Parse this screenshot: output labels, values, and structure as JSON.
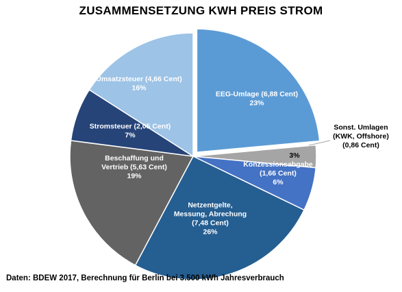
{
  "title": "ZUSAMMENSETZUNG KWH PREIS STROM",
  "source": "Daten: BDEW 2017, Berechnung für Berlin bei 3.500 kWh Jahresverbrauch",
  "chart_data": {
    "type": "pie",
    "title": "ZUSAMMENSETZUNG KWH PREIS STROM",
    "start_angle_deg": 0,
    "direction": "clockwise",
    "slices": [
      {
        "name": "EEG-Umlage",
        "label_lines": [
          "EEG-Umlage (6,88 Cent)",
          "23%"
        ],
        "cent": 6.88,
        "percent": 23,
        "color": "#5b9bd5",
        "exploded": true,
        "label_color": "light"
      },
      {
        "name": "Sonst. Umlagen",
        "label_lines": [
          "3%"
        ],
        "outside_label_lines": [
          "Sonst. Umlagen",
          "(KWK, Offshore)",
          "(0,86 Cent)"
        ],
        "cent": 0.86,
        "percent": 3,
        "color": "#a5a5a5",
        "exploded": false,
        "label_color": "dark"
      },
      {
        "name": "Konzessionsabgabe",
        "label_lines": [
          "Konzessionsabgabe",
          "(1,66 Cent)",
          "6%"
        ],
        "cent": 1.66,
        "percent": 6,
        "color": "#4472c4",
        "exploded": false,
        "label_color": "light"
      },
      {
        "name": "Netzentgelte",
        "label_lines": [
          "Netzentgelte,",
          "Messung, Abrechung",
          "(7,48 Cent)",
          "26%"
        ],
        "cent": 7.48,
        "percent": 26,
        "color": "#255e91",
        "exploded": false,
        "label_color": "light"
      },
      {
        "name": "Beschaffung und Vertrieb",
        "label_lines": [
          "Beschaffung und",
          "Vertrieb (5,63 Cent)",
          "19%"
        ],
        "cent": 5.63,
        "percent": 19,
        "color": "#636363",
        "exploded": false,
        "label_color": "light"
      },
      {
        "name": "Stromsteuer",
        "label_lines": [
          "Stromsteuer (2,05 Cent)",
          "7%"
        ],
        "cent": 2.05,
        "percent": 7,
        "color": "#264478",
        "exploded": false,
        "label_color": "light"
      },
      {
        "name": "Umsatzsteuer",
        "label_lines": [
          "Umsatzsteuer (4,66 Cent)",
          "16%"
        ],
        "cent": 4.66,
        "percent": 16,
        "color": "#9dc3e6",
        "exploded": false,
        "label_color": "light"
      }
    ]
  }
}
